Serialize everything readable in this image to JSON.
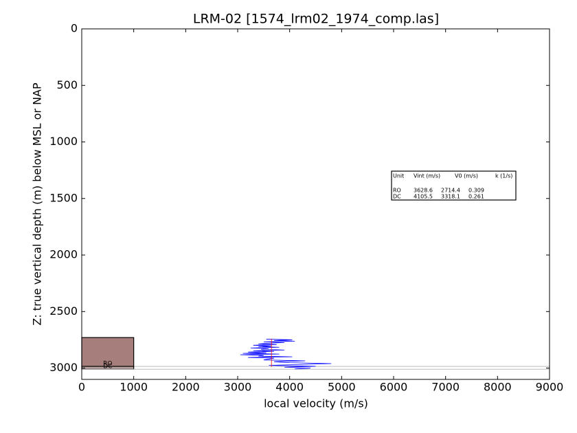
{
  "chart_data": {
    "type": "line",
    "title": "LRM-02 [1574_lrm02_1974_comp.las]",
    "xlabel": "local velocity (m/s)",
    "ylabel": "Z: true vertical depth (m) below MSL or NAP",
    "xlim": [
      0,
      9000
    ],
    "ylim": [
      3100,
      0
    ],
    "xticks": [
      0,
      1000,
      2000,
      3000,
      4000,
      5000,
      6000,
      7000,
      8000,
      9000
    ],
    "yticks": [
      0,
      500,
      1000,
      1500,
      2000,
      2500,
      3000
    ],
    "series": [
      {
        "color": "#0000ff",
        "x": [
          3550,
          4050,
          3700,
          4100,
          3500,
          3900,
          3600,
          3400,
          3750,
          3300,
          3650,
          3400,
          3800,
          3250,
          3600,
          3450,
          3900,
          3300,
          3700,
          3200,
          3550,
          3100,
          3800,
          3050,
          3500,
          3400,
          4050,
          3200,
          3700,
          3600,
          3500,
          4300,
          3700,
          4000,
          4800,
          4200,
          3600,
          4500,
          3900,
          4400,
          4100
        ],
        "y": [
          2744,
          2750,
          2756,
          2762,
          2768,
          2774,
          2780,
          2786,
          2792,
          2798,
          2804,
          2810,
          2816,
          2822,
          2828,
          2834,
          2840,
          2846,
          2852,
          2858,
          2864,
          2870,
          2876,
          2882,
          2888,
          2894,
          2900,
          2906,
          2912,
          2920,
          2928,
          2936,
          2944,
          2952,
          2960,
          2968,
          2976,
          2984,
          2992,
          3000,
          3008
        ]
      },
      {
        "color": "#ff0000",
        "x": [
          3650,
          3650
        ],
        "y": [
          2740,
          2990
        ]
      }
    ],
    "units": [
      {
        "name": "RO",
        "top": 2730,
        "base": 2985,
        "x": [
          0,
          1000
        ],
        "color": "#a67f7d"
      },
      {
        "name": "DC",
        "top": 2985,
        "base": 3010,
        "x": [
          0,
          1000
        ],
        "color": "#b8a2a0"
      }
    ],
    "table": {
      "header": [
        "Unit",
        "Vint (m/s)",
        "V0 (m/s)",
        "k (1/s)"
      ],
      "rows": [
        [
          "RO",
          3628.6,
          2714.4,
          0.309
        ],
        [
          "DC",
          4105.5,
          3318.1,
          0.261
        ]
      ]
    }
  }
}
